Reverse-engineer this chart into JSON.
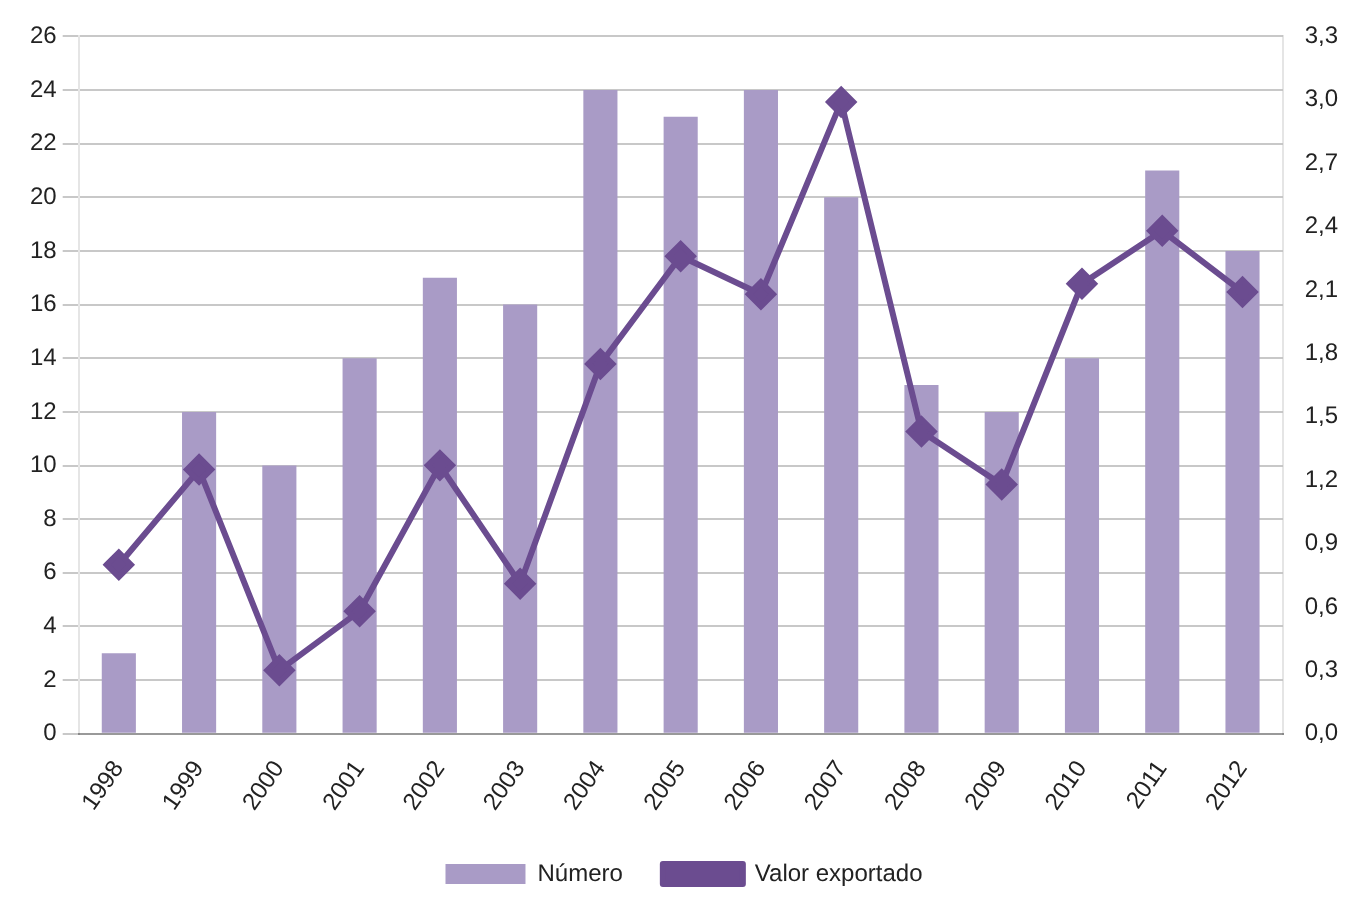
{
  "chart_data": {
    "type": "bar",
    "categories": [
      "1998",
      "1999",
      "2000",
      "2001",
      "2002",
      "2003",
      "2004",
      "2005",
      "2006",
      "2007",
      "2008",
      "2009",
      "2010",
      "2011",
      "2012"
    ],
    "series": [
      {
        "name": "Número",
        "color": "#a99bc6",
        "values": [
          3,
          12,
          10,
          14,
          17,
          16,
          24,
          23,
          24,
          20,
          13,
          12,
          14,
          21,
          18
        ]
      },
      {
        "name": "Valor exportado",
        "type": "line",
        "axis": "y2",
        "color": "#6b4c90",
        "marker": "diamond",
        "values": [
          0.8,
          1.25,
          0.3,
          0.58,
          1.27,
          0.71,
          1.75,
          2.26,
          2.08,
          2.99,
          1.43,
          1.18,
          2.13,
          2.38,
          2.09
        ]
      }
    ],
    "ylim": [
      0,
      26
    ],
    "yticks": [
      0,
      2,
      4,
      6,
      8,
      10,
      12,
      14,
      16,
      18,
      20,
      22,
      24,
      26
    ],
    "y2lim": [
      0,
      3.3
    ],
    "y2ticks": [
      {
        "value": 0,
        "label": "0,0"
      },
      {
        "value": 0.3,
        "label": "0,3"
      },
      {
        "value": 0.6,
        "label": "0,6"
      },
      {
        "value": 0.9,
        "label": "0,9"
      },
      {
        "value": 1.2,
        "label": "1,2"
      },
      {
        "value": 1.5,
        "label": "1,5"
      },
      {
        "value": 1.8,
        "label": "1,8"
      },
      {
        "value": 2.1,
        "label": "2,1"
      },
      {
        "value": 2.4,
        "label": "2,4"
      },
      {
        "value": 2.7,
        "label": "2,7"
      },
      {
        "value": 3.0,
        "label": "3,0"
      },
      {
        "value": 3.3,
        "label": "3,3"
      }
    ],
    "grid": "y",
    "legend": "bottom"
  }
}
